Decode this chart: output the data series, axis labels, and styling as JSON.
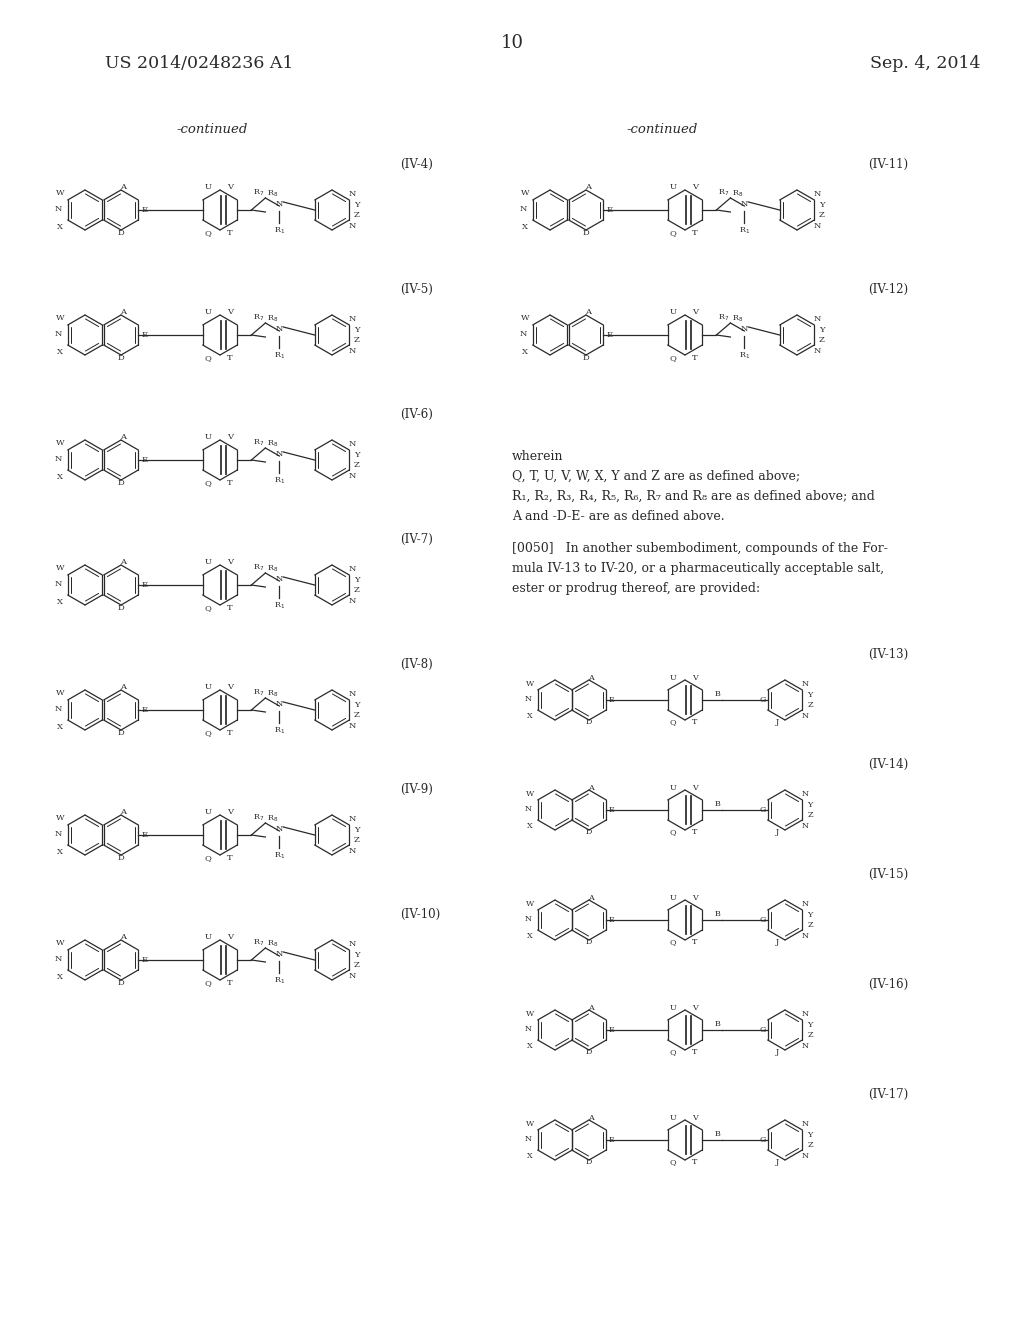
{
  "background_color": "#ffffff",
  "page_number": "10",
  "patent_number": "US 2014/0248236 A1",
  "patent_date": "Sep. 4, 2014",
  "continued_left": "-continued",
  "continued_right": "-continued",
  "left_labels": [
    "(IV-4)",
    "(IV-5)",
    "(IV-6)",
    "(IV-7)",
    "(IV-8)",
    "(IV-9)",
    "(IV-10)"
  ],
  "right_top_labels": [
    "(IV-11)",
    "(IV-12)"
  ],
  "right_bot_labels": [
    "(IV-13)",
    "(IV-14)",
    "(IV-15)",
    "(IV-16)",
    "(IV-17)"
  ],
  "wherein_lines": [
    "wherein",
    "Q, T, U, V, W, X, Y and Z are as defined above;",
    "R1, R2, R3, R4, R5, R6, R7 and R8 are as defined above; and",
    "A and -D-E- are as defined above."
  ],
  "para_0050_lines": [
    "[0050]   In another subembodiment, compounds of the For-",
    "mula IV-13 to IV-20, or a pharmaceutically acceptable salt,",
    "ester or prodrug thereof, are provided:"
  ],
  "text_color": "#2a2a2a"
}
